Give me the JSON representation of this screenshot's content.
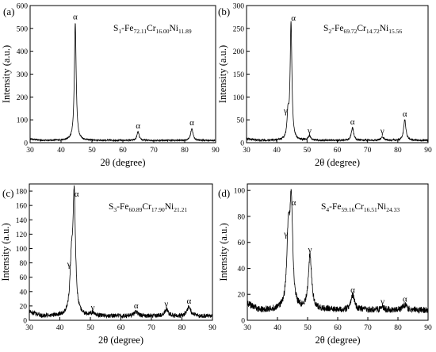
{
  "chart_data": [
    {
      "type": "line",
      "panel_label": "(a)",
      "composition": {
        "s": "S",
        "s_sub": "1",
        "fe": "-Fe",
        "fe_sub": "72.11",
        "cr": "Cr",
        "cr_sub": "16.00",
        "ni": "Ni",
        "ni_sub": "11.89"
      },
      "xlabel": "2θ (degree)",
      "ylabel": "Intensity (a.u.)",
      "xlim": [
        30,
        90
      ],
      "ylim": [
        0,
        600
      ],
      "xticks": [
        30,
        40,
        50,
        60,
        70,
        80,
        90
      ],
      "yticks": [
        0,
        100,
        200,
        300,
        400,
        500,
        600
      ],
      "baseline": 10,
      "noise": 3,
      "peaks": [
        {
          "x": 44.6,
          "y": 525,
          "w": 0.35,
          "label": "α"
        },
        {
          "x": 64.9,
          "y": 48,
          "w": 0.4,
          "label": "α"
        },
        {
          "x": 82.3,
          "y": 62,
          "w": 0.45,
          "label": "α"
        }
      ]
    },
    {
      "type": "line",
      "panel_label": "(b)",
      "composition": {
        "s": "S",
        "s_sub": "2",
        "fe": "-Fe",
        "fe_sub": "69.72",
        "cr": "Cr",
        "cr_sub": "14.72",
        "ni": "Ni",
        "ni_sub": "15.56"
      },
      "xlabel": "2θ (degree)",
      "ylabel": "Intensity (a.u.)",
      "xlim": [
        30,
        90
      ],
      "ylim": [
        0,
        300
      ],
      "xticks": [
        30,
        40,
        50,
        60,
        70,
        80,
        90
      ],
      "yticks": [
        0,
        50,
        100,
        150,
        200,
        250,
        300
      ],
      "baseline": 5,
      "noise": 2,
      "peaks": [
        {
          "x": 43.7,
          "y": 57,
          "w": 0.35,
          "label": "γ"
        },
        {
          "x": 44.7,
          "y": 260,
          "w": 0.35,
          "label": "α"
        },
        {
          "x": 50.8,
          "y": 14,
          "w": 0.5,
          "label": "γ"
        },
        {
          "x": 65.0,
          "y": 33,
          "w": 0.45,
          "label": "α"
        },
        {
          "x": 74.9,
          "y": 13,
          "w": 0.5,
          "label": "γ"
        },
        {
          "x": 82.3,
          "y": 50,
          "w": 0.45,
          "label": "α"
        }
      ]
    },
    {
      "type": "line",
      "panel_label": "(c)",
      "composition": {
        "s": "S",
        "s_sub": "3",
        "fe": "-Fe",
        "fe_sub": "60.89",
        "cr": "Cr",
        "cr_sub": "17.90",
        "ni": "Ni",
        "ni_sub": "21.21"
      },
      "xlabel": "2θ (degree)",
      "ylabel": "Intensity (a.u.)",
      "xlim": [
        30,
        90
      ],
      "ylim": [
        0,
        190
      ],
      "xticks": [
        30,
        40,
        50,
        60,
        70,
        80,
        90
      ],
      "yticks": [
        0,
        20,
        40,
        60,
        80,
        100,
        120,
        140,
        160,
        180
      ],
      "baseline": 6,
      "noise": 3,
      "peaks": [
        {
          "x": 43.8,
          "y": 70,
          "w": 0.55,
          "label": "γ"
        },
        {
          "x": 44.7,
          "y": 168,
          "w": 0.5,
          "label": "α"
        },
        {
          "x": 50.8,
          "y": 10,
          "w": 0.7,
          "label": "γ"
        },
        {
          "x": 65.0,
          "y": 12,
          "w": 0.7,
          "label": "α"
        },
        {
          "x": 74.9,
          "y": 15,
          "w": 0.7,
          "label": "γ"
        },
        {
          "x": 82.3,
          "y": 19,
          "w": 0.7,
          "label": "α"
        }
      ]
    },
    {
      "type": "line",
      "panel_label": "(d)",
      "composition": {
        "s": "S",
        "s_sub": "4",
        "fe": "-Fe",
        "fe_sub": "59.16",
        "cr": "Cr",
        "cr_sub": "16.51",
        "ni": "Ni",
        "ni_sub": "24.33"
      },
      "xlabel": "2θ (degree)",
      "ylabel": "Intensity (a.u.)",
      "xlim": [
        30,
        90
      ],
      "ylim": [
        0,
        105
      ],
      "xticks": [
        30,
        40,
        50,
        60,
        70,
        80,
        90
      ],
      "yticks": [
        0,
        20,
        40,
        60,
        80,
        100
      ],
      "baseline": 8,
      "noise": 2.5,
      "peaks": [
        {
          "x": 43.6,
          "y": 62,
          "w": 0.6,
          "label": "γ"
        },
        {
          "x": 44.6,
          "y": 86,
          "w": 0.55,
          "label": "α"
        },
        {
          "x": 50.8,
          "y": 50,
          "w": 0.65,
          "label": "γ"
        },
        {
          "x": 65.0,
          "y": 19,
          "w": 0.7,
          "label": "α"
        },
        {
          "x": 74.9,
          "y": 10,
          "w": 0.7,
          "label": "γ"
        },
        {
          "x": 82.3,
          "y": 12,
          "w": 0.7,
          "label": "α"
        }
      ]
    }
  ]
}
